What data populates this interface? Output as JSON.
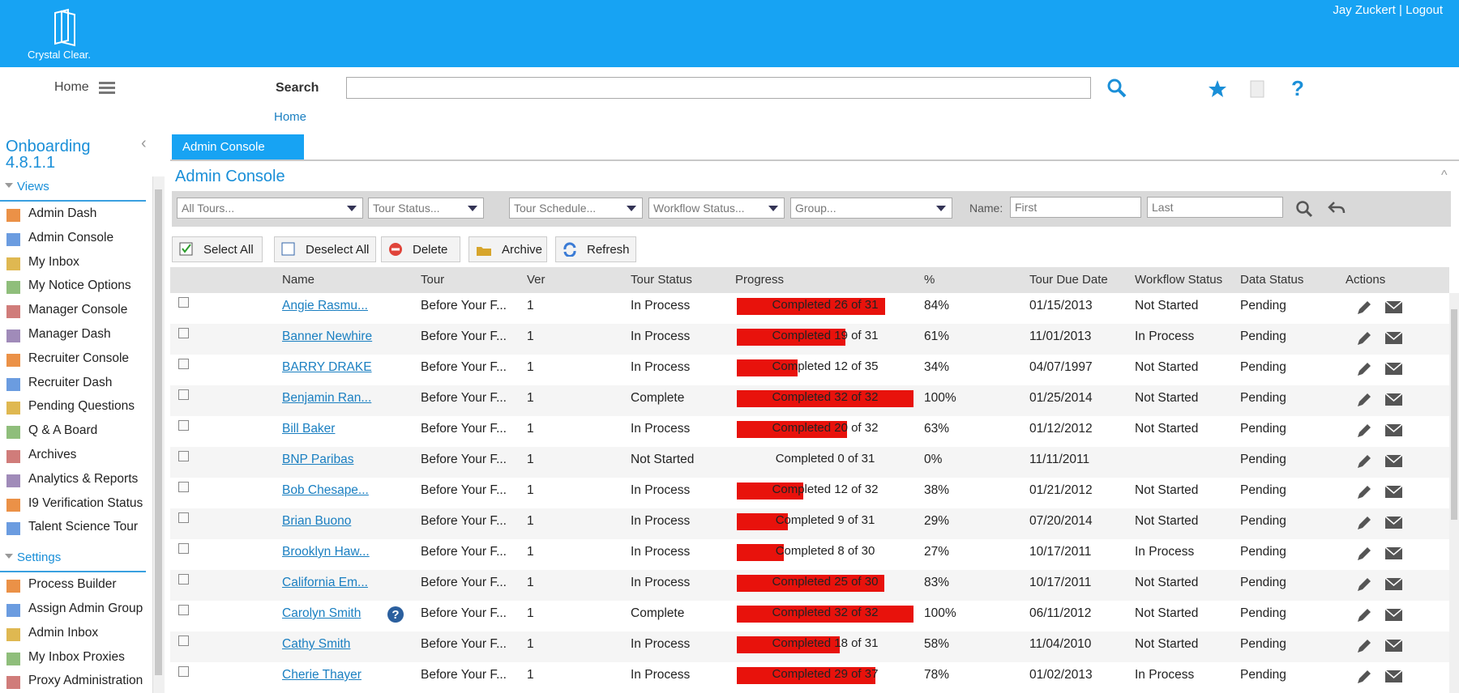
{
  "header": {
    "logo": "Crystal Clear.",
    "user": "Jay Zuckert",
    "separator": "|",
    "logout": "Logout"
  },
  "nav": {
    "home": "Home",
    "search_label": "Search",
    "breadcrumb": "Home"
  },
  "sidebar": {
    "title": "Onboarding",
    "version": "4.8.1.1",
    "sections": [
      {
        "title": "Views",
        "items": [
          "Admin Dash",
          "Admin Console",
          "My Inbox",
          "My Notice Options",
          "Manager Console",
          "Manager Dash",
          "Recruiter Console",
          "Recruiter Dash",
          "Pending Questions",
          "Q & A Board",
          "Archives",
          "Analytics & Reports",
          "I9 Verification Status",
          "Talent Science Tour"
        ]
      },
      {
        "title": "Settings",
        "items": [
          "Process Builder",
          "Assign Admin Group",
          "Admin Inbox",
          "My Inbox Proxies",
          "Proxy Administration"
        ]
      }
    ]
  },
  "tab": "Admin Console",
  "panel_title": "Admin Console",
  "filters": {
    "selects": [
      "All Tours...",
      "Tour Status...",
      "Tour Schedule...",
      "Workflow Status...",
      "Group..."
    ],
    "name_label": "Name:",
    "first": "First",
    "last": "Last"
  },
  "toolbar": [
    "Select All",
    "Deselect All",
    "Delete",
    "Archive",
    "Refresh"
  ],
  "table": {
    "columns": [
      "Name",
      "Tour",
      "Ver",
      "Tour Status",
      "Progress",
      "%",
      "Tour Due Date",
      "Workflow Status",
      "Data Status",
      "Actions"
    ],
    "rows": [
      {
        "name": "Angie Rasmu...",
        "tour": "Before Your F...",
        "ver": "1",
        "status": "In Process",
        "progress": {
          "label": "Completed 26 of 31",
          "completed": 26,
          "total": 31
        },
        "percent": "84%",
        "due": "01/15/2013",
        "workflow": "Not Started",
        "data_status": "Pending"
      },
      {
        "name": "Banner Newhire",
        "tour": "Before Your F...",
        "ver": "1",
        "status": "In Process",
        "progress": {
          "label": "Completed 19 of 31",
          "completed": 19,
          "total": 31
        },
        "percent": "61%",
        "due": "11/01/2013",
        "workflow": "In Process",
        "data_status": "Pending"
      },
      {
        "name": "BARRY DRAKE",
        "tour": "Before Your F...",
        "ver": "1",
        "status": "In Process",
        "progress": {
          "label": "Completed 12 of 35",
          "completed": 12,
          "total": 35
        },
        "percent": "34%",
        "due": "04/07/1997",
        "workflow": "Not Started",
        "data_status": "Pending"
      },
      {
        "name": "Benjamin Ran...",
        "tour": "Before Your F...",
        "ver": "1",
        "status": "Complete",
        "progress": {
          "label": "Completed 32 of 32",
          "completed": 32,
          "total": 32
        },
        "percent": "100%",
        "due": "01/25/2014",
        "workflow": "Not Started",
        "data_status": "Pending"
      },
      {
        "name": "Bill Baker",
        "tour": "Before Your F...",
        "ver": "1",
        "status": "In Process",
        "progress": {
          "label": "Completed 20 of 32",
          "completed": 20,
          "total": 32
        },
        "percent": "63%",
        "due": "01/12/2012",
        "workflow": "Not Started",
        "data_status": "Pending"
      },
      {
        "name": "BNP Paribas",
        "tour": "Before Your F...",
        "ver": "1",
        "status": "Not Started",
        "progress": {
          "label": "Completed 0 of 31",
          "completed": 0,
          "total": 31
        },
        "percent": "0%",
        "due": "11/11/2011",
        "workflow": null,
        "data_status": "Pending"
      },
      {
        "name": "Bob Chesape...",
        "tour": "Before Your F...",
        "ver": "1",
        "status": "In Process",
        "progress": {
          "label": "Completed 12 of 32",
          "completed": 12,
          "total": 32
        },
        "percent": "38%",
        "due": "01/21/2012",
        "workflow": "Not Started",
        "data_status": "Pending"
      },
      {
        "name": "Brian Buono",
        "tour": "Before Your F...",
        "ver": "1",
        "status": "In Process",
        "progress": {
          "label": "Completed 9 of 31",
          "completed": 9,
          "total": 31
        },
        "percent": "29%",
        "due": "07/20/2014",
        "workflow": "Not Started",
        "data_status": "Pending"
      },
      {
        "name": "Brooklyn Haw...",
        "tour": "Before Your F...",
        "ver": "1",
        "status": "In Process",
        "progress": {
          "label": "Completed 8 of 30",
          "completed": 8,
          "total": 30
        },
        "percent": "27%",
        "due": "10/17/2011",
        "workflow": "In Process",
        "data_status": "Pending"
      },
      {
        "name": "California Em...",
        "tour": "Before Your F...",
        "ver": "1",
        "status": "In Process",
        "progress": {
          "label": "Completed 25 of 30",
          "completed": 25,
          "total": 30
        },
        "percent": "83%",
        "due": "10/17/2011",
        "workflow": "Not Started",
        "data_status": "Pending"
      },
      {
        "name": "Carolyn Smith",
        "tour": "Before Your F...",
        "ver": "1",
        "status": "Complete",
        "progress": {
          "label": "Completed 32 of 32",
          "completed": 32,
          "total": 32
        },
        "percent": "100%",
        "due": "06/11/2012",
        "workflow": "Not Started",
        "data_status": "Pending"
      },
      {
        "name": "Cathy Smith",
        "tour": "Before Your F...",
        "ver": "1",
        "status": "In Process",
        "progress": {
          "label": "Completed 18 of 31",
          "completed": 18,
          "total": 31
        },
        "percent": "58%",
        "due": "11/04/2010",
        "workflow": "Not Started",
        "data_status": "Pending"
      },
      {
        "name": "Cherie Thayer",
        "tour": "Before Your F...",
        "ver": "1",
        "status": "In Process",
        "progress": {
          "label": "Completed 29 of 37",
          "completed": 29,
          "total": 37
        },
        "percent": "78%",
        "due": "01/02/2013",
        "workflow": "In Process",
        "data_status": "Pending"
      }
    ]
  }
}
